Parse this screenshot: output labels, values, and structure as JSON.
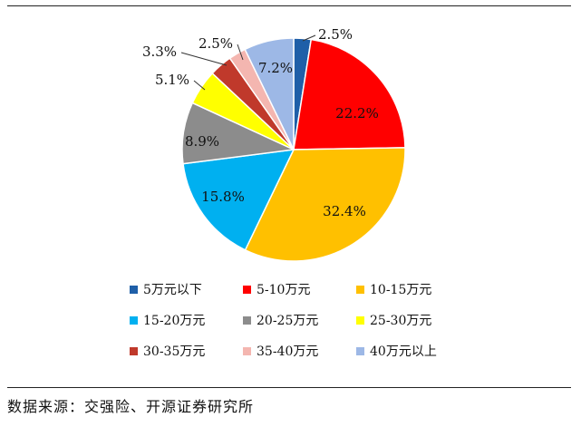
{
  "chart_data": {
    "type": "pie",
    "slices": [
      {
        "label": "5万元以下",
        "value": 2.5,
        "display": "2.5%",
        "color": "#1f5fa8"
      },
      {
        "label": "5-10万元",
        "value": 22.2,
        "display": "22.2%",
        "color": "#ff0000"
      },
      {
        "label": "10-15万元",
        "value": 32.4,
        "display": "32.4%",
        "color": "#ffc000"
      },
      {
        "label": "15-20万元",
        "value": 15.8,
        "display": "15.8%",
        "color": "#00b0f0"
      },
      {
        "label": "20-25万元",
        "value": 8.9,
        "display": "8.9%",
        "color": "#8c8c8c"
      },
      {
        "label": "25-30万元",
        "value": 5.1,
        "display": "5.1%",
        "color": "#ffff00"
      },
      {
        "label": "30-35万元",
        "value": 3.3,
        "display": "3.3%",
        "color": "#c0392b"
      },
      {
        "label": "35-40万元",
        "value": 2.5,
        "display": "2.5%",
        "color": "#f4b6b0"
      },
      {
        "label": "40万元以上",
        "value": 7.2,
        "display": "7.2%",
        "color": "#9db8e6"
      }
    ],
    "legend_position": "bottom"
  },
  "source": "数据来源：交强险、开源证券研究所"
}
